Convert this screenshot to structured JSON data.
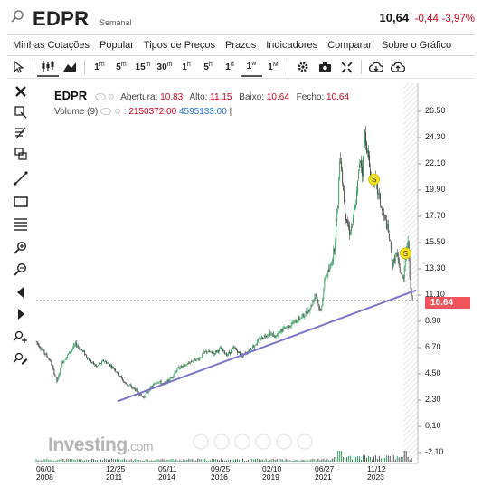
{
  "header": {
    "symbol": "EDPR",
    "period": "Semanal",
    "last": "10,64",
    "change": "-0,44",
    "change_pct": "-3,97%"
  },
  "menu": [
    "Minhas Cotações",
    "Popular",
    "Tipos de Preços",
    "Prazos",
    "Indicadores",
    "Comparar",
    "Sobre o Gráfico"
  ],
  "toolbar": {
    "timeframes": [
      {
        "n": "1",
        "u": "m"
      },
      {
        "n": "5",
        "u": "m"
      },
      {
        "n": "15",
        "u": "m"
      },
      {
        "n": "30",
        "u": "m"
      },
      {
        "n": "1",
        "u": "h"
      },
      {
        "n": "5",
        "u": "h"
      },
      {
        "n": "1",
        "u": "d"
      },
      {
        "n": "1",
        "u": "w"
      },
      {
        "n": "1",
        "u": "M"
      }
    ],
    "active_timeframe": "1w",
    "icons": [
      "cursor-icon",
      "candlestick-icon",
      "area-chart-icon",
      "gear-icon",
      "camera-icon",
      "fullscreen-icon",
      "cloud-download-icon",
      "cloud-upload-icon"
    ]
  },
  "sidebar_icons": [
    "close-icon",
    "crosshair-pencil-icon",
    "fibonacci-icon",
    "clone-icon",
    "trendline-icon",
    "rectangle-icon",
    "horizontal-lines-icon",
    "zoom-in-icon",
    "zoom-out-icon",
    "arrow-left-icon",
    "arrow-right-icon",
    "add-indicator-icon",
    "edit-indicator-icon"
  ],
  "legend": {
    "symbol": "EDPR",
    "open_label": "Abertura:",
    "open": "10.83",
    "high_label": "Alto:",
    "high": "11.15",
    "low_label": "Baixo:",
    "low": "10.64",
    "close_label": "Fecho:",
    "close": "10.64",
    "volume_label": "Volume (9)",
    "volume_value": "2150372.00",
    "volume_ma": "4595133.00",
    "volume_sep": "|"
  },
  "current_price_tag": "10.64",
  "watermark": {
    "brand": "Investing",
    "suffix": ".com"
  },
  "chart_data": {
    "type": "candlestick",
    "y_ticks": [
      "26.50",
      "24.30",
      "22.10",
      "19.90",
      "17.70",
      "15.50",
      "13.30",
      "11.10",
      "8.90",
      "6.70",
      "4.50",
      "2.30",
      "0.10",
      "-2.10"
    ],
    "x_ticks": [
      {
        "date": "06/01",
        "year": "2008"
      },
      {
        "date": "12/25",
        "year": "2011"
      },
      {
        "date": "05/11",
        "year": "2014"
      },
      {
        "date": "09/25",
        "year": "2016"
      },
      {
        "date": "02/10",
        "year": "2019"
      },
      {
        "date": "06/27",
        "year": "2021"
      },
      {
        "date": "11/12",
        "year": "2023"
      }
    ],
    "ylim": [
      -2.1,
      27.5
    ],
    "price_path": [
      [
        2008.0,
        7.2
      ],
      [
        2008.3,
        6.4
      ],
      [
        2008.6,
        5.6
      ],
      [
        2008.9,
        3.8
      ],
      [
        2009.1,
        5.4
      ],
      [
        2009.4,
        6.2
      ],
      [
        2009.7,
        7.0
      ],
      [
        2010.0,
        6.4
      ],
      [
        2010.3,
        5.6
      ],
      [
        2010.6,
        5.1
      ],
      [
        2010.9,
        5.6
      ],
      [
        2011.2,
        5.2
      ],
      [
        2011.5,
        4.6
      ],
      [
        2011.8,
        3.7
      ],
      [
        2012.0,
        3.5
      ],
      [
        2012.3,
        3.1
      ],
      [
        2012.6,
        2.5
      ],
      [
        2012.9,
        3.3
      ],
      [
        2013.2,
        3.9
      ],
      [
        2013.5,
        3.6
      ],
      [
        2013.8,
        4.2
      ],
      [
        2014.1,
        5.0
      ],
      [
        2014.4,
        5.2
      ],
      [
        2014.7,
        5.6
      ],
      [
        2015.0,
        5.8
      ],
      [
        2015.3,
        6.4
      ],
      [
        2015.6,
        6.2
      ],
      [
        2015.9,
        6.6
      ],
      [
        2016.2,
        6.1
      ],
      [
        2016.5,
        6.7
      ],
      [
        2016.8,
        6.0
      ],
      [
        2017.1,
        6.4
      ],
      [
        2017.4,
        7.0
      ],
      [
        2017.7,
        7.6
      ],
      [
        2018.0,
        7.9
      ],
      [
        2018.3,
        7.6
      ],
      [
        2018.6,
        8.3
      ],
      [
        2018.9,
        8.6
      ],
      [
        2019.2,
        9.0
      ],
      [
        2019.5,
        9.4
      ],
      [
        2019.8,
        10.2
      ],
      [
        2020.0,
        11.3
      ],
      [
        2020.2,
        9.5
      ],
      [
        2020.4,
        12.6
      ],
      [
        2020.6,
        13.2
      ],
      [
        2020.8,
        15.1
      ],
      [
        2020.95,
        18.9
      ],
      [
        2021.05,
        23.4
      ],
      [
        2021.15,
        20.5
      ],
      [
        2021.3,
        17.6
      ],
      [
        2021.45,
        16.4
      ],
      [
        2021.6,
        17.3
      ],
      [
        2021.75,
        19.3
      ],
      [
        2021.9,
        22.8
      ],
      [
        2022.0,
        21.4
      ],
      [
        2022.1,
        24.8
      ],
      [
        2022.2,
        23.3
      ],
      [
        2022.35,
        21.1
      ],
      [
        2022.5,
        20.8
      ],
      [
        2022.7,
        19.4
      ],
      [
        2022.85,
        18.0
      ],
      [
        2023.0,
        17.3
      ],
      [
        2023.15,
        15.9
      ],
      [
        2023.3,
        13.6
      ],
      [
        2023.45,
        14.6
      ],
      [
        2023.6,
        13.2
      ],
      [
        2023.75,
        12.3
      ],
      [
        2023.85,
        14.6
      ],
      [
        2023.95,
        15.6
      ],
      [
        2024.05,
        12.3
      ],
      [
        2024.15,
        10.64
      ]
    ],
    "markers": [
      {
        "label": "S",
        "x": 2022.5,
        "y": 20.8
      },
      {
        "label": "S",
        "x": 2023.85,
        "y": 14.6
      }
    ],
    "trendline": [
      {
        "x": 2011.5,
        "y": 2.2
      },
      {
        "x": 2024.3,
        "y": 11.5
      }
    ],
    "price_line": 10.64,
    "colors": {
      "up": "#2e9e5b",
      "down": "#444444",
      "trendline": "#7b75c9",
      "price_tag": "#f2545b"
    }
  }
}
